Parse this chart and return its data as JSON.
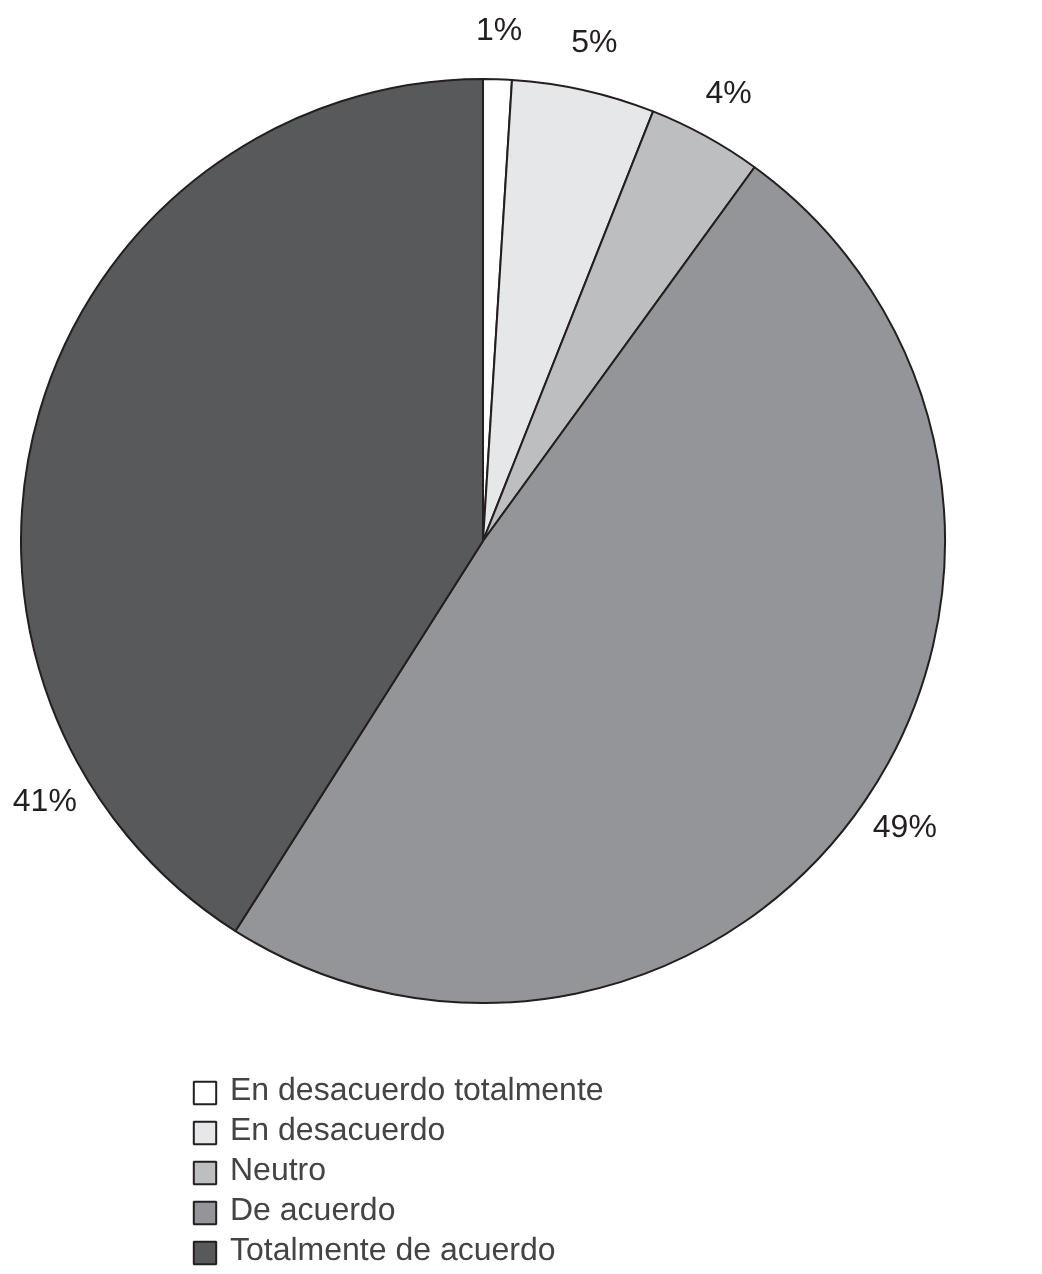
{
  "chart_data": {
    "type": "pie",
    "categories": [
      "En desacuerdo totalmente",
      "En desacuerdo",
      "Neutro",
      "De acuerdo",
      "Totalmente de acuerdo"
    ],
    "values": [
      1,
      5,
      4,
      49,
      41
    ],
    "colors": [
      "#ffffff",
      "#e6e7e8",
      "#bcbec0",
      "#939598",
      "#58595b"
    ],
    "value_labels": [
      "1%",
      "5%",
      "4%",
      "49%",
      "41%"
    ],
    "legend": "bottom"
  }
}
